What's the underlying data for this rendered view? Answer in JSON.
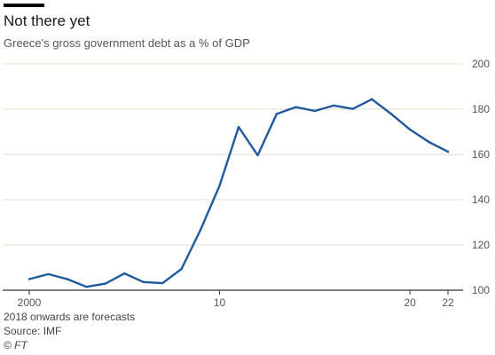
{
  "header": {
    "title": "Not there yet",
    "subtitle": "Greece's gross government debt as a % of GDP"
  },
  "footer": {
    "note": "2018 onwards are forecasts",
    "source": "Source: IMF",
    "copyright": "© FT"
  },
  "chart_data": {
    "type": "line",
    "title": "Not there yet",
    "subtitle": "Greece's gross government debt as a % of GDP",
    "xlabel": "",
    "ylabel": "",
    "x": [
      2000,
      2001,
      2002,
      2003,
      2004,
      2005,
      2006,
      2007,
      2008,
      2009,
      2010,
      2011,
      2012,
      2013,
      2014,
      2015,
      2016,
      2017,
      2018,
      2019,
      2020,
      2021,
      2022
    ],
    "series": [
      {
        "name": "",
        "values": [
          104.9,
          107.1,
          104.9,
          101.5,
          102.9,
          107.4,
          103.6,
          103.1,
          109.4,
          126.7,
          146.2,
          172.1,
          159.6,
          177.9,
          180.9,
          179.2,
          181.6,
          180.1,
          184.4,
          178.0,
          171.0,
          165.5,
          161.2
        ]
      }
    ],
    "xticks": [
      2000,
      2010,
      2020,
      2022
    ],
    "xtick_labels": [
      "2000",
      "10",
      "20",
      "22"
    ],
    "yticks": [
      100,
      120,
      140,
      160,
      180,
      200
    ],
    "ytick_labels": [
      "100",
      "120",
      "140",
      "160",
      "180",
      "200"
    ],
    "xlim": [
      1999,
      2023
    ],
    "ylim": [
      100,
      200
    ],
    "grid": true,
    "y_axis_side": "right",
    "colors": {
      "line": "#1f5a9e",
      "grid": "#e5ddc8",
      "baseline": "#333333"
    }
  }
}
